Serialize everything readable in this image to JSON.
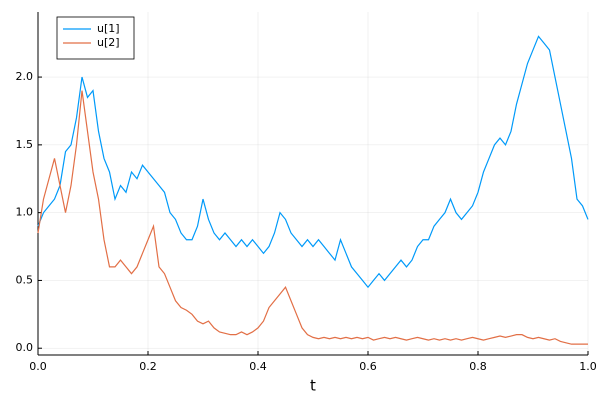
{
  "chart_data": {
    "type": "line",
    "xlabel": "t",
    "x": [
      0,
      0.01,
      0.02,
      0.03,
      0.04,
      0.05,
      0.06,
      0.07,
      0.08,
      0.09,
      0.1,
      0.11,
      0.12,
      0.13,
      0.14,
      0.15,
      0.16,
      0.17,
      0.18,
      0.19,
      0.2,
      0.21,
      0.22,
      0.23,
      0.24,
      0.25,
      0.26,
      0.27,
      0.28,
      0.29,
      0.3,
      0.31,
      0.32,
      0.33,
      0.34,
      0.35,
      0.36,
      0.37,
      0.38,
      0.39,
      0.4,
      0.41,
      0.42,
      0.43,
      0.44,
      0.45,
      0.46,
      0.47,
      0.48,
      0.49,
      0.5,
      0.51,
      0.52,
      0.53,
      0.54,
      0.55,
      0.56,
      0.57,
      0.58,
      0.59,
      0.6,
      0.61,
      0.62,
      0.63,
      0.64,
      0.65,
      0.66,
      0.67,
      0.68,
      0.69,
      0.7,
      0.71,
      0.72,
      0.73,
      0.74,
      0.75,
      0.76,
      0.77,
      0.78,
      0.79,
      0.8,
      0.81,
      0.82,
      0.83,
      0.84,
      0.85,
      0.86,
      0.87,
      0.88,
      0.89,
      0.9,
      0.91,
      0.92,
      0.93,
      0.94,
      0.95,
      0.96,
      0.97,
      0.98,
      0.99,
      1.0
    ],
    "series": [
      {
        "name": "u[1]",
        "color": "#009af9",
        "values": [
          0.9,
          1.0,
          1.05,
          1.1,
          1.2,
          1.45,
          1.5,
          1.7,
          2.0,
          1.85,
          1.9,
          1.6,
          1.4,
          1.3,
          1.1,
          1.2,
          1.15,
          1.3,
          1.25,
          1.35,
          1.3,
          1.25,
          1.2,
          1.15,
          1.0,
          0.95,
          0.85,
          0.8,
          0.8,
          0.9,
          1.1,
          0.95,
          0.85,
          0.8,
          0.85,
          0.8,
          0.75,
          0.8,
          0.75,
          0.8,
          0.75,
          0.7,
          0.75,
          0.85,
          1.0,
          0.95,
          0.85,
          0.8,
          0.75,
          0.8,
          0.75,
          0.8,
          0.75,
          0.7,
          0.65,
          0.8,
          0.7,
          0.6,
          0.55,
          0.5,
          0.45,
          0.5,
          0.55,
          0.5,
          0.55,
          0.6,
          0.65,
          0.6,
          0.65,
          0.75,
          0.8,
          0.8,
          0.9,
          0.95,
          1.0,
          1.1,
          1.0,
          0.95,
          1.0,
          1.05,
          1.15,
          1.3,
          1.4,
          1.5,
          1.55,
          1.5,
          1.6,
          1.8,
          1.95,
          2.1,
          2.2,
          2.3,
          2.25,
          2.2,
          2.0,
          1.8,
          1.6,
          1.4,
          1.1,
          1.05,
          0.95
        ]
      },
      {
        "name": "u[2]",
        "color": "#e26f46",
        "values": [
          0.85,
          1.1,
          1.25,
          1.4,
          1.2,
          1.0,
          1.2,
          1.5,
          1.9,
          1.6,
          1.3,
          1.1,
          0.8,
          0.6,
          0.6,
          0.65,
          0.6,
          0.55,
          0.6,
          0.7,
          0.8,
          0.9,
          0.6,
          0.55,
          0.45,
          0.35,
          0.3,
          0.28,
          0.25,
          0.2,
          0.18,
          0.2,
          0.15,
          0.12,
          0.11,
          0.1,
          0.1,
          0.12,
          0.1,
          0.12,
          0.15,
          0.2,
          0.3,
          0.35,
          0.4,
          0.45,
          0.35,
          0.25,
          0.15,
          0.1,
          0.08,
          0.07,
          0.08,
          0.07,
          0.08,
          0.07,
          0.08,
          0.07,
          0.08,
          0.07,
          0.08,
          0.06,
          0.07,
          0.08,
          0.07,
          0.08,
          0.07,
          0.06,
          0.07,
          0.08,
          0.07,
          0.06,
          0.07,
          0.06,
          0.07,
          0.06,
          0.07,
          0.06,
          0.07,
          0.08,
          0.07,
          0.06,
          0.07,
          0.08,
          0.09,
          0.08,
          0.09,
          0.1,
          0.1,
          0.08,
          0.07,
          0.08,
          0.07,
          0.06,
          0.07,
          0.05,
          0.04,
          0.03,
          0.03,
          0.03,
          0.03
        ]
      }
    ],
    "xlim": [
      0,
      1
    ],
    "ylim": [
      -0.05,
      2.48
    ],
    "xticks": [
      {
        "value": 0,
        "label": "0.0"
      },
      {
        "value": 0.2,
        "label": "0.2"
      },
      {
        "value": 0.4,
        "label": "0.4"
      },
      {
        "value": 0.6,
        "label": "0.6"
      },
      {
        "value": 0.8,
        "label": "0.8"
      },
      {
        "value": 1,
        "label": "1.0"
      }
    ],
    "yticks": [
      {
        "value": 0,
        "label": "0.0"
      },
      {
        "value": 0.5,
        "label": "0.5"
      },
      {
        "value": 1,
        "label": "1.0"
      },
      {
        "value": 1.5,
        "label": "1.5"
      },
      {
        "value": 2,
        "label": "2.0"
      }
    ],
    "grid": true,
    "legend": "top-left"
  }
}
